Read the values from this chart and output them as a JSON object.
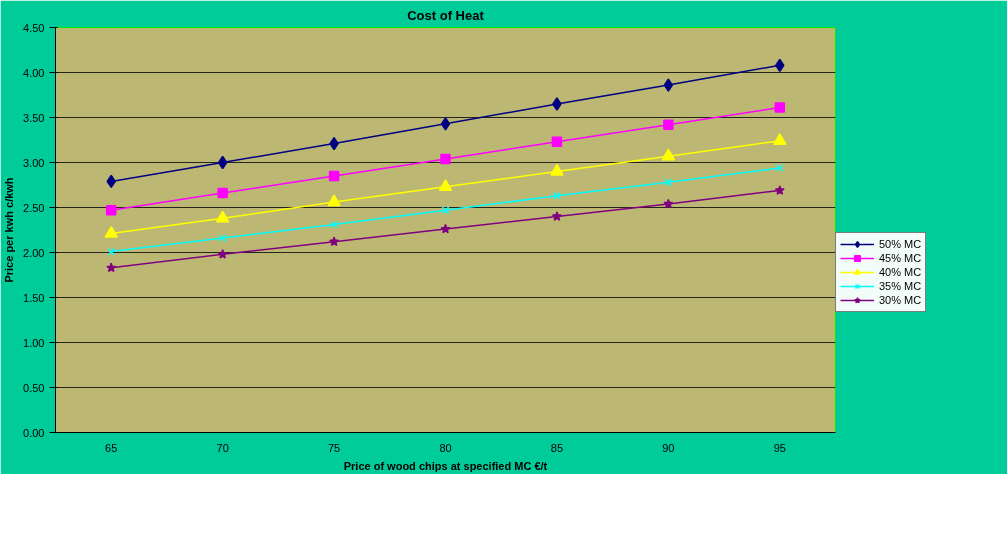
{
  "chart_data": {
    "type": "line",
    "title": "Cost of Heat",
    "xlabel": "Price of wood chips at specified MC €/t",
    "ylabel": "Price per kwh c/kwh",
    "categories": [
      "65",
      "70",
      "75",
      "80",
      "85",
      "90",
      "95"
    ],
    "series": [
      {
        "name": "50% MC",
        "color": "#000080",
        "marker": "diamond",
        "values": [
          2.79,
          3.0,
          3.21,
          3.43,
          3.65,
          3.86,
          4.08
        ]
      },
      {
        "name": "45% MC",
        "color": "#ff00ff",
        "marker": "square",
        "values": [
          2.47,
          2.66,
          2.85,
          3.04,
          3.23,
          3.42,
          3.61
        ]
      },
      {
        "name": "40% MC",
        "color": "#ffff00",
        "marker": "triangle",
        "values": [
          2.21,
          2.38,
          2.56,
          2.73,
          2.9,
          3.07,
          3.24
        ]
      },
      {
        "name": "35% MC",
        "color": "#00ffff",
        "marker": "cross",
        "values": [
          2.01,
          2.16,
          2.31,
          2.47,
          2.63,
          2.78,
          2.94
        ]
      },
      {
        "name": "30% MC",
        "color": "#800080",
        "marker": "star",
        "values": [
          1.83,
          1.98,
          2.12,
          2.26,
          2.4,
          2.54,
          2.69
        ]
      }
    ],
    "ylim": [
      0,
      4.5
    ],
    "yticks": [
      {
        "value": 0,
        "label": "0.00"
      },
      {
        "value": 0.5,
        "label": "0.50"
      },
      {
        "value": 1,
        "label": "1.00"
      },
      {
        "value": 1.5,
        "label": "1.50"
      },
      {
        "value": 2,
        "label": "2.00"
      },
      {
        "value": 2.5,
        "label": "2.50"
      },
      {
        "value": 3,
        "label": "3.00"
      },
      {
        "value": 3.5,
        "label": "3.50"
      },
      {
        "value": 4,
        "label": "4.00"
      },
      {
        "value": 4.5,
        "label": "4.50"
      }
    ],
    "grid": "y",
    "legend": "right"
  }
}
